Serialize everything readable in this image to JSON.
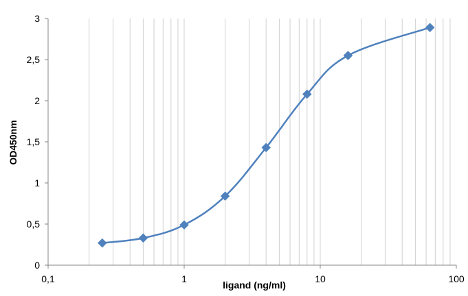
{
  "chart_data": {
    "type": "scatter",
    "title": "",
    "xlabel": "ligand (ng/ml)",
    "ylabel": "OD450nm",
    "xscale": "log",
    "xlim": [
      0.1,
      100
    ],
    "ylim": [
      0,
      3
    ],
    "grid": "vertical minor and major",
    "legend": "none",
    "x_ticks": [
      {
        "value": 0.1,
        "label": "0,1"
      },
      {
        "value": 1,
        "label": "1"
      },
      {
        "value": 10,
        "label": "10"
      },
      {
        "value": 100,
        "label": "100"
      }
    ],
    "y_ticks": [
      {
        "value": 0,
        "label": "0"
      },
      {
        "value": 0.5,
        "label": "0,5"
      },
      {
        "value": 1,
        "label": "1"
      },
      {
        "value": 1.5,
        "label": "1,5"
      },
      {
        "value": 2,
        "label": "2"
      },
      {
        "value": 2.5,
        "label": "2,5"
      },
      {
        "value": 3,
        "label": "3"
      }
    ],
    "series": [
      {
        "color": "#4f81bd",
        "marker": "diamond",
        "line": "smooth",
        "x": [
          0.25,
          0.5,
          1,
          2,
          4,
          8,
          16,
          64
        ],
        "y": [
          0.27,
          0.33,
          0.49,
          0.84,
          1.43,
          2.08,
          2.55,
          2.89
        ]
      }
    ]
  }
}
